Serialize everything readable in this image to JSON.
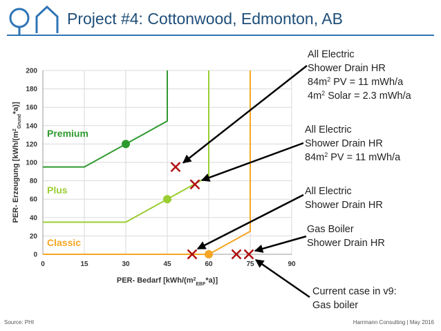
{
  "slide": {
    "title": "Project #4: Cottonwood, Edmonton, AB",
    "source": "Source: PHI",
    "credit": "Harrmann Consulting | May 2016"
  },
  "colors": {
    "premium": "#2e9a2e",
    "plus": "#9acd32",
    "classic": "#f5a623",
    "marker": "#b01010",
    "title": "#1f4e79"
  },
  "chart_data": {
    "type": "line",
    "xlabel_parts": [
      "PER- Bedarf [kWh/(m",
      "2",
      "EBF",
      "*a)]"
    ],
    "ylabel_parts": [
      "PER- Erzeugung [kWh/(m",
      "2",
      "Grund",
      "*a)]"
    ],
    "xlim": [
      0,
      90
    ],
    "ylim": [
      0,
      200
    ],
    "xticks": [
      0,
      15,
      30,
      45,
      60,
      75,
      90
    ],
    "yticks": [
      0,
      20,
      40,
      60,
      80,
      100,
      120,
      140,
      160,
      180,
      200
    ],
    "grid": true,
    "series": [
      {
        "name": "Premium",
        "color": "#2e9a2e",
        "boundary": [
          [
            0,
            95
          ],
          [
            15,
            95
          ],
          [
            45,
            145
          ],
          [
            45,
            200
          ]
        ],
        "point": [
          30,
          120
        ]
      },
      {
        "name": "Plus",
        "color": "#9acd32",
        "boundary": [
          [
            0,
            35
          ],
          [
            30,
            35
          ],
          [
            60,
            85
          ],
          [
            60,
            200
          ]
        ],
        "point": [
          45,
          60
        ]
      },
      {
        "name": "Classic",
        "color": "#f5a623",
        "boundary": [
          [
            0,
            0
          ],
          [
            60,
            0
          ],
          [
            75,
            25
          ],
          [
            75,
            200
          ]
        ],
        "point": [
          60,
          0
        ]
      }
    ],
    "class_labels": [
      {
        "text": "Premium",
        "x": 1.5,
        "y": 128
      },
      {
        "text": "Plus",
        "x": 1.5,
        "y": 66
      },
      {
        "text": "Classic",
        "x": 1.5,
        "y": 9
      }
    ],
    "markers": [
      {
        "x": 48,
        "y": 95
      },
      {
        "x": 55,
        "y": 76
      },
      {
        "x": 54,
        "y": 0
      },
      {
        "x": 70,
        "y": 0
      },
      {
        "x": 74.5,
        "y": 0
      }
    ],
    "annotations": [
      {
        "lines": [
          "All Electric",
          "Shower Drain HR",
          "84m|2| PV = 11 mWh/a",
          "4m|2| Solar = 2.3 mWh/a"
        ],
        "target": 0
      },
      {
        "lines": [
          "All Electric",
          "Shower Drain HR",
          "84m|2| PV = 11 mWh/a"
        ],
        "target": 1
      },
      {
        "lines": [
          "All Electric",
          "Shower Drain HR"
        ],
        "target": 2
      },
      {
        "lines": [
          "Gas Boiler",
          "Shower Drain HR"
        ],
        "target": 4
      },
      {
        "lines": [
          "Current case in v9:",
          "Gas boiler"
        ],
        "target": 4
      }
    ]
  }
}
